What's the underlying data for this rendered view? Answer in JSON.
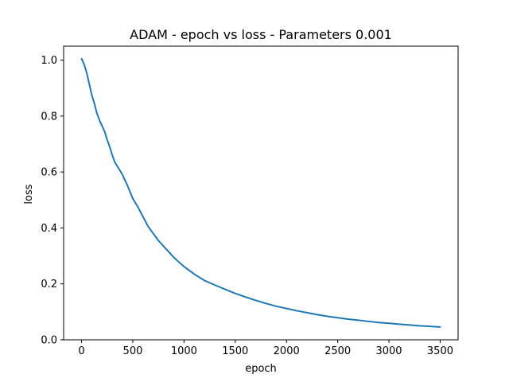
{
  "chart_data": {
    "type": "line",
    "title": "ADAM - epoch vs loss - Parameters 0.001",
    "xlabel": "epoch",
    "ylabel": "loss",
    "xlim": [
      -175,
      3675
    ],
    "ylim": [
      0.0,
      1.05
    ],
    "xticks": [
      0,
      500,
      1000,
      1500,
      2000,
      2500,
      3000,
      3500
    ],
    "yticks": [
      0.0,
      0.2,
      0.4,
      0.6,
      0.8,
      1.0
    ],
    "xtick_labels": [
      "0",
      "500",
      "1000",
      "1500",
      "2000",
      "2500",
      "3000",
      "3500"
    ],
    "ytick_labels": [
      "0.0",
      "0.2",
      "0.4",
      "0.6",
      "0.8",
      "1.0"
    ],
    "grid": false,
    "series": [
      {
        "color": "#1f77b4",
        "x": [
          0,
          25,
          50,
          75,
          100,
          125,
          150,
          175,
          200,
          225,
          250,
          275,
          300,
          325,
          350,
          375,
          400,
          450,
          500,
          550,
          600,
          650,
          700,
          750,
          800,
          850,
          900,
          950,
          1000,
          1100,
          1200,
          1300,
          1400,
          1500,
          1600,
          1700,
          1800,
          1900,
          2000,
          2100,
          2200,
          2300,
          2400,
          2500,
          2600,
          2700,
          2800,
          2900,
          3000,
          3100,
          3200,
          3300,
          3400,
          3500
        ],
        "y": [
          1.005,
          0.985,
          0.955,
          0.915,
          0.875,
          0.845,
          0.81,
          0.785,
          0.765,
          0.745,
          0.715,
          0.69,
          0.66,
          0.635,
          0.62,
          0.605,
          0.59,
          0.55,
          0.505,
          0.475,
          0.44,
          0.405,
          0.38,
          0.355,
          0.335,
          0.315,
          0.295,
          0.278,
          0.262,
          0.235,
          0.212,
          0.196,
          0.181,
          0.166,
          0.153,
          0.141,
          0.13,
          0.12,
          0.112,
          0.104,
          0.097,
          0.09,
          0.084,
          0.079,
          0.074,
          0.07,
          0.066,
          0.062,
          0.059,
          0.056,
          0.053,
          0.05,
          0.048,
          0.046
        ]
      }
    ]
  }
}
